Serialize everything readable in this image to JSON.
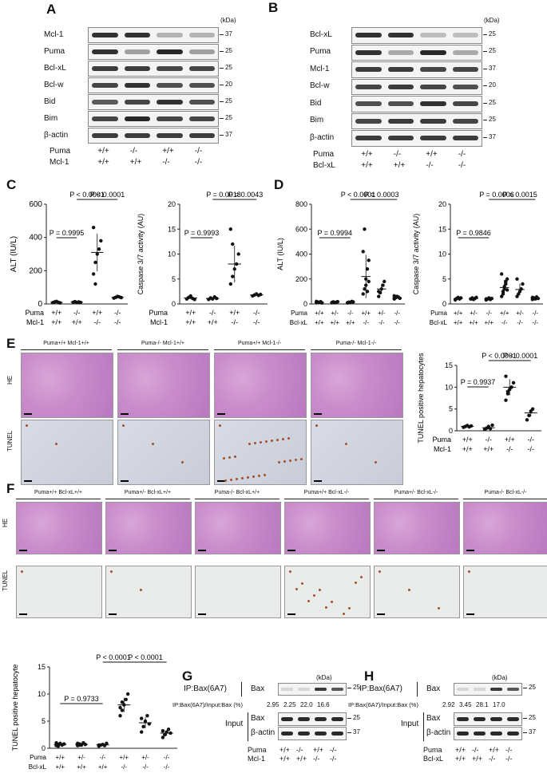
{
  "panels": {
    "A": "A",
    "B": "B",
    "C": "C",
    "D": "D",
    "E": "E",
    "F": "F",
    "G": "G",
    "H": "H"
  },
  "kda": "(kDa)",
  "blotA": {
    "rows": [
      {
        "label": "Mcl-1",
        "mw": "37"
      },
      {
        "label": "Puma",
        "mw": "25"
      },
      {
        "label": "Bcl-xL",
        "mw": "25"
      },
      {
        "label": "Bcl-w",
        "mw": "20"
      },
      {
        "label": "Bid",
        "mw": "25"
      },
      {
        "label": "Bim",
        "mw": "25"
      },
      {
        "label": "β-actin",
        "mw": "37"
      }
    ],
    "genotype": [
      {
        "label": "Puma",
        "values": [
          "+/+",
          "-/-",
          "+/+",
          "-/-"
        ]
      },
      {
        "label": "Mcl-1",
        "values": [
          "+/+",
          "+/+",
          "-/-",
          "-/-"
        ]
      }
    ]
  },
  "blotB": {
    "rows": [
      {
        "label": "Bcl-xL",
        "mw": "25"
      },
      {
        "label": "Puma",
        "mw": "25"
      },
      {
        "label": "Mcl-1",
        "mw": "37"
      },
      {
        "label": "Bcl-w",
        "mw": "20"
      },
      {
        "label": "Bid",
        "mw": "25"
      },
      {
        "label": "Bim",
        "mw": "25"
      },
      {
        "label": "β-actin",
        "mw": "37"
      }
    ],
    "genotype": [
      {
        "label": "Puma",
        "values": [
          "+/+",
          "-/-",
          "+/+",
          "-/-"
        ]
      },
      {
        "label": "Bcl-xL",
        "values": [
          "+/+",
          "+/+",
          "-/-",
          "-/-"
        ]
      }
    ]
  },
  "chart_data": [
    {
      "id": "C1",
      "type": "scatter",
      "ylabel": "ALT (IU/L)",
      "ylim": [
        0,
        600
      ],
      "yticks": [
        "0",
        "200",
        "400",
        "600"
      ],
      "groups": [
        {
          "values": [
            8,
            12,
            15,
            10,
            6
          ]
        },
        {
          "values": [
            10,
            14,
            8,
            12,
            9
          ]
        },
        {
          "values": [
            180,
            250,
            300,
            330,
            380,
            460,
            120
          ]
        },
        {
          "values": [
            35,
            40,
            45,
            42,
            38
          ]
        }
      ],
      "means": [
        10,
        11,
        310,
        40
      ],
      "pvals": [
        {
          "text": "P = 0.9995",
          "from": 0,
          "to": 1
        },
        {
          "text": "P < 0.0001",
          "from": 1,
          "to": 2
        },
        {
          "text": "P < 0.0001",
          "from": 2,
          "to": 3
        }
      ],
      "rows": [
        {
          "label": "Puma",
          "values": [
            "+/+",
            "-/-",
            "+/+",
            "-/-"
          ]
        },
        {
          "label": "Mcl-1",
          "values": [
            "+/+",
            "+/+",
            "-/-",
            "-/-"
          ]
        }
      ]
    },
    {
      "id": "C2",
      "type": "scatter",
      "ylabel": "Caspase 3/7 activity (AU)",
      "ylim": [
        0,
        20
      ],
      "yticks": [
        "0",
        "5",
        "10",
        "15",
        "20"
      ],
      "groups": [
        {
          "values": [
            1.0,
            1.3,
            1.6,
            1.1,
            0.9
          ]
        },
        {
          "values": [
            0.9,
            1.2,
            1.0,
            1.4,
            1.1
          ]
        },
        {
          "values": [
            4,
            5.5,
            7,
            8,
            10,
            15,
            12
          ]
        },
        {
          "values": [
            1.6,
            1.8,
            2.0,
            1.7,
            1.9
          ]
        }
      ],
      "means": [
        1.2,
        1.1,
        8,
        1.8
      ],
      "pvals": [
        {
          "text": "P = 0.9993",
          "from": 0,
          "to": 1
        },
        {
          "text": "P = 0.0018",
          "from": 1,
          "to": 2
        },
        {
          "text": "P = 0.0043",
          "from": 2,
          "to": 3
        }
      ],
      "rows": [
        {
          "label": "Puma",
          "values": [
            "+/+",
            "-/-",
            "+/+",
            "-/-"
          ]
        },
        {
          "label": "Mcl-1",
          "values": [
            "+/+",
            "+/+",
            "-/-",
            "-/-"
          ]
        }
      ]
    },
    {
      "id": "D1",
      "type": "scatter",
      "ylabel": "ALT (IU/L)",
      "ylim": [
        0,
        800
      ],
      "yticks": [
        "0",
        "200",
        "400",
        "600",
        "800"
      ],
      "groups": [
        {
          "values": [
            10,
            15,
            12,
            18,
            8,
            20
          ]
        },
        {
          "values": [
            12,
            16,
            10,
            14,
            18,
            9
          ]
        },
        {
          "values": [
            10,
            14,
            12,
            20,
            16,
            8
          ]
        },
        {
          "values": [
            80,
            120,
            200,
            280,
            350,
            420,
            600,
            150,
            100,
            180
          ]
        },
        {
          "values": [
            60,
            90,
            120,
            150,
            180,
            100
          ]
        },
        {
          "values": [
            40,
            50,
            60,
            55,
            45,
            65
          ]
        }
      ],
      "means": [
        14,
        13,
        13,
        220,
        120,
        50
      ],
      "pvals": [
        {
          "text": "P = 0.9994",
          "from": 0,
          "to": 2
        },
        {
          "text": "P < 0.0001",
          "from": 2,
          "to": 3
        },
        {
          "text": "P = 0.0003",
          "from": 3,
          "to": 5
        }
      ],
      "rows": [
        {
          "label": "Puma",
          "values": [
            "+/+",
            "+/-",
            "-/-",
            "+/+",
            "+/-",
            "-/-"
          ]
        },
        {
          "label": "Bcl-xL",
          "values": [
            "+/+",
            "+/+",
            "+/+",
            "-/-",
            "-/-",
            "-/-"
          ]
        }
      ]
    },
    {
      "id": "D2",
      "type": "scatter",
      "ylabel": "Caspase 3/7 activity (AU)",
      "ylim": [
        0,
        20
      ],
      "yticks": [
        "0",
        "5",
        "10",
        "15",
        "20"
      ],
      "groups": [
        {
          "values": [
            0.9,
            1.1,
            1.3,
            1.0,
            1.2,
            0.8
          ]
        },
        {
          "values": [
            1.0,
            1.2,
            0.9,
            1.1,
            1.3,
            1.0
          ]
        },
        {
          "values": [
            0.8,
            1.0,
            1.2,
            0.9,
            1.1,
            1.0
          ]
        },
        {
          "values": [
            1.5,
            2.5,
            3,
            4,
            5,
            6,
            2,
            3.5,
            4.5,
            2.8
          ]
        },
        {
          "values": [
            1.5,
            2,
            2.5,
            3,
            4,
            5
          ]
        },
        {
          "values": [
            0.9,
            1.2,
            1.0,
            1.4,
            1.1,
            1.3
          ]
        }
      ],
      "means": [
        1.05,
        1.08,
        1.0,
        3.3,
        2.9,
        1.15
      ],
      "pvals": [
        {
          "text": "P = 0.9846",
          "from": 0,
          "to": 2
        },
        {
          "text": "P = 0.0006",
          "from": 2,
          "to": 3
        },
        {
          "text": "P = 0.0015",
          "from": 3,
          "to": 5
        }
      ],
      "rows": [
        {
          "label": "Puma",
          "values": [
            "+/+",
            "+/-",
            "-/-",
            "+/+",
            "+/-",
            "-/-"
          ]
        },
        {
          "label": "Bcl-xL",
          "values": [
            "+/+",
            "+/+",
            "+/+",
            "-/-",
            "-/-",
            "-/-"
          ]
        }
      ]
    },
    {
      "id": "E",
      "type": "scatter",
      "ylabel": "TUNEL positive hepatocytes",
      "ylim": [
        0,
        15
      ],
      "yticks": [
        "0",
        "5",
        "10",
        "15"
      ],
      "groups": [
        {
          "values": [
            0.8,
            1.0,
            1.2,
            0.9,
            1.1
          ]
        },
        {
          "values": [
            0.3,
            0.6,
            1.0,
            0.5,
            1.3
          ]
        },
        {
          "values": [
            7,
            8.5,
            9.5,
            10,
            11,
            12.5,
            9
          ]
        },
        {
          "values": [
            2.5,
            3.5,
            4.5,
            5
          ]
        }
      ],
      "means": [
        1.0,
        0.7,
        10,
        4.1
      ],
      "pvals": [
        {
          "text": "P = 0.9937",
          "from": 0,
          "to": 1
        },
        {
          "text": "P < 0.0001",
          "from": 1,
          "to": 2
        },
        {
          "text": "P < 0.0001",
          "from": 2,
          "to": 3
        }
      ],
      "rows": [
        {
          "label": "Puma",
          "values": [
            "+/+",
            "-/-",
            "+/+",
            "-/-"
          ]
        },
        {
          "label": "Mcl-1",
          "values": [
            "+/+",
            "+/+",
            "-/-",
            "-/-"
          ]
        }
      ]
    },
    {
      "id": "F",
      "type": "scatter",
      "ylabel": "TUNEL positive hepatocyte",
      "ylim": [
        0,
        15
      ],
      "yticks": [
        "0",
        "5",
        "10",
        "15"
      ],
      "groups": [
        {
          "values": [
            0.5,
            0.7,
            0.9,
            0.6,
            0.8,
            1.0,
            0.4
          ]
        },
        {
          "values": [
            0.5,
            0.8,
            0.6,
            1.0,
            0.7,
            0.9,
            0.6
          ]
        },
        {
          "values": [
            0.4,
            0.6,
            0.7,
            0.5,
            0.9,
            0.6
          ]
        },
        {
          "values": [
            6,
            7,
            8,
            9,
            10,
            7.5,
            8.5
          ]
        },
        {
          "values": [
            3,
            4,
            5,
            6,
            4.5,
            5.5
          ]
        },
        {
          "values": [
            2,
            2.5,
            3,
            3.5,
            2.8,
            3.2
          ]
        }
      ],
      "means": [
        0.7,
        0.73,
        0.62,
        8,
        4.7,
        2.8
      ],
      "pvals": [
        {
          "text": "P = 0.9733",
          "from": 0,
          "to": 2
        },
        {
          "text": "P < 0.0001",
          "from": 2,
          "to": 3
        },
        {
          "text": "P < 0.0001",
          "from": 3,
          "to": 5
        }
      ],
      "rows": [
        {
          "label": "Puma",
          "values": [
            "+/+",
            "+/-",
            "-/-",
            "+/+",
            "+/-",
            "-/-"
          ]
        },
        {
          "label": "Bcl-xL",
          "values": [
            "+/+",
            "+/+",
            "+/+",
            "-/-",
            "-/-",
            "-/-"
          ]
        }
      ]
    }
  ],
  "histE": {
    "headers": [
      "Puma+/+ Mcl-1+/+",
      "Puma-/- Mcl-1+/+",
      "Puma+/+ Mcl-1-/-",
      "Puma-/- Mcl-1-/-"
    ],
    "rows": [
      "HE",
      "TUNEL"
    ]
  },
  "histF": {
    "headers": [
      "Puma+/+ Bcl-xL+/+",
      "Puma+/- Bcl-xL+/+",
      "Puma-/- Bcl-xL+/+",
      "Puma+/+ Bcl-xL-/-",
      "Puma+/- Bcl-xL-/-",
      "Puma-/- Bcl-xL-/-"
    ],
    "rows": [
      "HE",
      "TUNEL"
    ]
  },
  "panelG": {
    "ip": "IP:Bax(6A7)",
    "bax": "Bax",
    "mw1": "25",
    "ratio_label": "IP:Bax(6A7)/Input:Bax (%)",
    "ratios": [
      "2.95",
      "2.25",
      "22.0",
      "16.6"
    ],
    "input": "Input",
    "input_rows": [
      {
        "label": "Bax",
        "mw": "25"
      },
      {
        "label": "β-actin",
        "mw": "37"
      }
    ],
    "genotype": [
      {
        "label": "Puma",
        "values": [
          "+/+",
          "-/-",
          "+/+",
          "-/-"
        ]
      },
      {
        "label": "Mcl-1",
        "values": [
          "+/+",
          "+/+",
          "-/-",
          "-/-"
        ]
      }
    ]
  },
  "panelH": {
    "ip": "IP:Bax(6A7)",
    "bax": "Bax",
    "mw1": "25",
    "ratio_label": "IP:Bax(6A7)/Input:Bax (%)",
    "ratios": [
      "2.92",
      "3.45",
      "28.1",
      "17.0"
    ],
    "input": "Input",
    "input_rows": [
      {
        "label": "Bax",
        "mw": "25"
      },
      {
        "label": "β-actin",
        "mw": "37"
      }
    ],
    "genotype": [
      {
        "label": "Puma",
        "values": [
          "+/+",
          "-/-",
          "+/+",
          "-/-"
        ]
      },
      {
        "label": "Bcl-xL",
        "values": [
          "+/+",
          "+/+",
          "-/-",
          "-/-"
        ]
      }
    ]
  }
}
